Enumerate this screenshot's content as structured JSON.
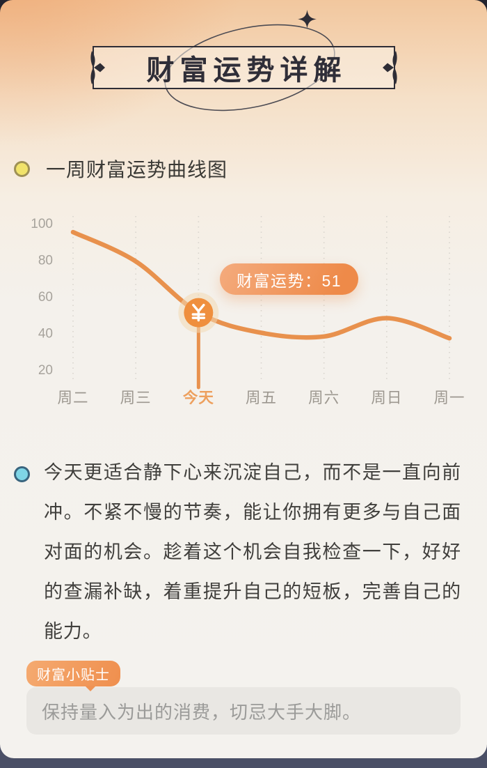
{
  "banner": {
    "title": "财富运势详解"
  },
  "chart_section": {
    "heading": "一周财富运势曲线图"
  },
  "chart_data": {
    "type": "line",
    "title": "一周财富运势曲线图",
    "categories": [
      "周二",
      "周三",
      "今天",
      "周五",
      "周六",
      "周日",
      "周一"
    ],
    "values": [
      95,
      79,
      51,
      40,
      38,
      48,
      37
    ],
    "highlight_index": 2,
    "highlight_label": "今天",
    "tooltip_text": "财富运势：51",
    "tooltip_value": 51,
    "marker_symbol": "¥",
    "yticks": [
      100,
      80,
      60,
      40,
      20
    ],
    "ylim": [
      20,
      100
    ],
    "xlabel": "",
    "ylabel": "",
    "grid": "vertical-dotted",
    "legend_position": "none"
  },
  "analysis": {
    "text": "今天更适合静下心来沉淀自己，而不是一直向前冲。不紧不慢的节奏，能让你拥有更多与自己面对面的机会。趁着这个机会自我检查一下，好好的查漏补缺，着重提升自己的短板，完善自己的能力。"
  },
  "tips": {
    "tag": "财富小贴士",
    "text": "保持量入为出的消费，切忌大手大脚。"
  },
  "colors": {
    "line_orange": "#E8914D",
    "coin_orange": "#EF8F3E",
    "halo": "#F2D9B4",
    "highlight_label": "#EDA05E",
    "axis_label": "#9C978F",
    "ytick_label": "#A7A39C",
    "gridline": "#D8D4CD",
    "bullet_yellow": "#F1E36B",
    "bullet_cyan": "#7FD5E6",
    "dark_frame": "#23242F",
    "bottom_bar": "#4A4F66",
    "tooltip_start": "#F4AB7D",
    "tooltip_end": "#EE8A49"
  }
}
